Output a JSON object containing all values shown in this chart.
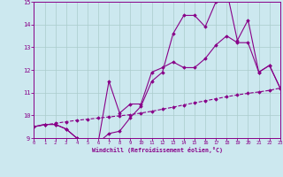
{
  "xlabel": "Windchill (Refroidissement éolien,°C)",
  "bg_color": "#cce8ef",
  "line_color": "#880088",
  "grid_color": "#aacccc",
  "xmin": 0,
  "xmax": 23,
  "ymin": 9,
  "ymax": 15,
  "line1_x": [
    0,
    1,
    2,
    3,
    4,
    5,
    6,
    7,
    8,
    9,
    10,
    11,
    12,
    13,
    14,
    15,
    16,
    17,
    18,
    19,
    20,
    21,
    22,
    23
  ],
  "line1_y": [
    9.5,
    9.6,
    9.6,
    9.4,
    9.0,
    8.85,
    8.8,
    9.2,
    9.3,
    9.9,
    10.4,
    11.5,
    11.9,
    13.6,
    14.4,
    14.4,
    13.9,
    15.0,
    15.5,
    13.3,
    14.2,
    11.9,
    12.2,
    11.2
  ],
  "line2_x": [
    0,
    1,
    2,
    3,
    4,
    5,
    6,
    7,
    8,
    9,
    10,
    11,
    12,
    13,
    14,
    15,
    16,
    17,
    18,
    19,
    20,
    21,
    22,
    23
  ],
  "line2_y": [
    9.5,
    9.6,
    9.6,
    9.4,
    9.0,
    8.85,
    8.8,
    11.5,
    10.1,
    10.5,
    10.5,
    11.9,
    12.1,
    12.35,
    12.1,
    12.1,
    12.5,
    13.1,
    13.5,
    13.2,
    13.2,
    11.9,
    12.2,
    11.2
  ],
  "line3_x": [
    0,
    1,
    2,
    3,
    4,
    5,
    6,
    7,
    8,
    9,
    10,
    11,
    12,
    13,
    14,
    15,
    16,
    17,
    18,
    19,
    20,
    21,
    22,
    23
  ],
  "line3_y": [
    9.5,
    9.58,
    9.65,
    9.72,
    9.78,
    9.83,
    9.88,
    9.93,
    9.98,
    10.03,
    10.1,
    10.18,
    10.27,
    10.36,
    10.46,
    10.55,
    10.64,
    10.73,
    10.82,
    10.9,
    10.97,
    11.03,
    11.1,
    11.2
  ]
}
